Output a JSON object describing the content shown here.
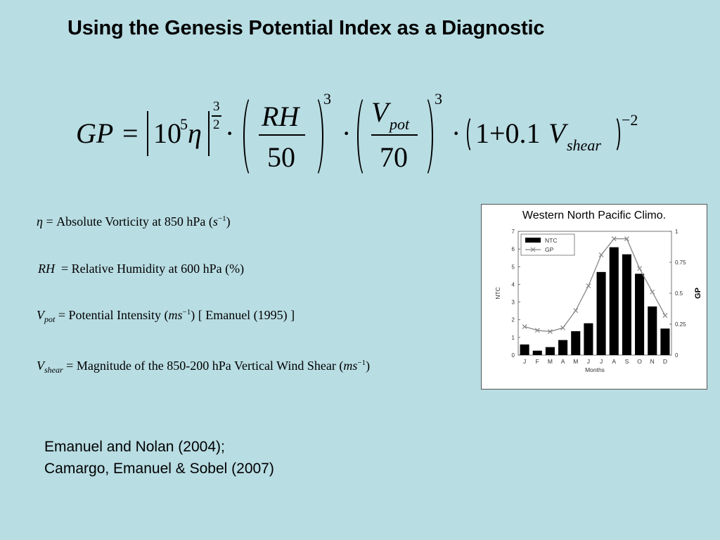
{
  "title": "Using the Genesis Potential Index as a Diagnostic",
  "formula": {
    "lhs": "GP",
    "equals": "=",
    "abs_base": "10",
    "abs_exp": "5",
    "eta": "η",
    "outer_exp_num": "3",
    "outer_exp_den": "2",
    "dot": "·",
    "rh": "RH",
    "rh_den": "50",
    "rh_exp": "3",
    "v": "V",
    "pot": "pot",
    "v_den": "70",
    "v_exp": "3",
    "shear_term": "1+0.1",
    "shear": "shear",
    "shear_exp": "−2"
  },
  "definitions": [
    {
      "symbol": "η",
      "sub": "",
      "text": "= Absolute Vorticity at 850 hPa (",
      "unit": "s",
      "unit_exp": "−1",
      "tail": ")"
    },
    {
      "symbol": "RH",
      "sub": "",
      "text": "= Relative Humidity at 600 hPa (%)",
      "unit": "",
      "unit_exp": "",
      "tail": ""
    },
    {
      "symbol": "V",
      "sub": "pot",
      "text": "= Potential Intensity (",
      "unit": "ms",
      "unit_exp": "−1",
      "tail": ")  [ Emanuel (1995) ]"
    },
    {
      "symbol": "V",
      "sub": "shear",
      "text": "= Magnitude of the 850-200 hPa Vertical Wind Shear  (",
      "unit": "ms",
      "unit_exp": "−1",
      "tail": ")"
    }
  ],
  "references": [
    "Emanuel and Nolan (2004);",
    "Camargo, Emanuel & Sobel (2007)"
  ],
  "chart_data": {
    "type": "bar",
    "title": "Western North Pacific Climo.",
    "categories": [
      "J",
      "F",
      "M",
      "A",
      "M",
      "J",
      "J",
      "A",
      "S",
      "O",
      "N",
      "D"
    ],
    "xlabel": "Months",
    "ylabel": "NTC",
    "y2label": "GP",
    "ylim": [
      0,
      7
    ],
    "y2lim": [
      0,
      1
    ],
    "yticks": [
      "0",
      "1",
      "2",
      "3",
      "4",
      "5",
      "6",
      "7"
    ],
    "y2ticks": [
      "0",
      "0.25",
      "0.5",
      "0.75",
      "1"
    ],
    "legend_placement": "top-left",
    "series": [
      {
        "name": "NTC",
        "type": "bar",
        "axis": "left",
        "color": "#000000",
        "values": [
          0.6,
          0.25,
          0.45,
          0.85,
          1.35,
          1.8,
          4.7,
          6.1,
          5.7,
          4.6,
          2.75,
          1.5
        ]
      },
      {
        "name": "GP",
        "type": "line",
        "axis": "right",
        "marker": "x",
        "color": "#888888",
        "values": [
          0.23,
          0.2,
          0.19,
          0.22,
          0.36,
          0.56,
          0.81,
          0.94,
          0.94,
          0.7,
          0.51,
          0.32
        ]
      }
    ]
  }
}
